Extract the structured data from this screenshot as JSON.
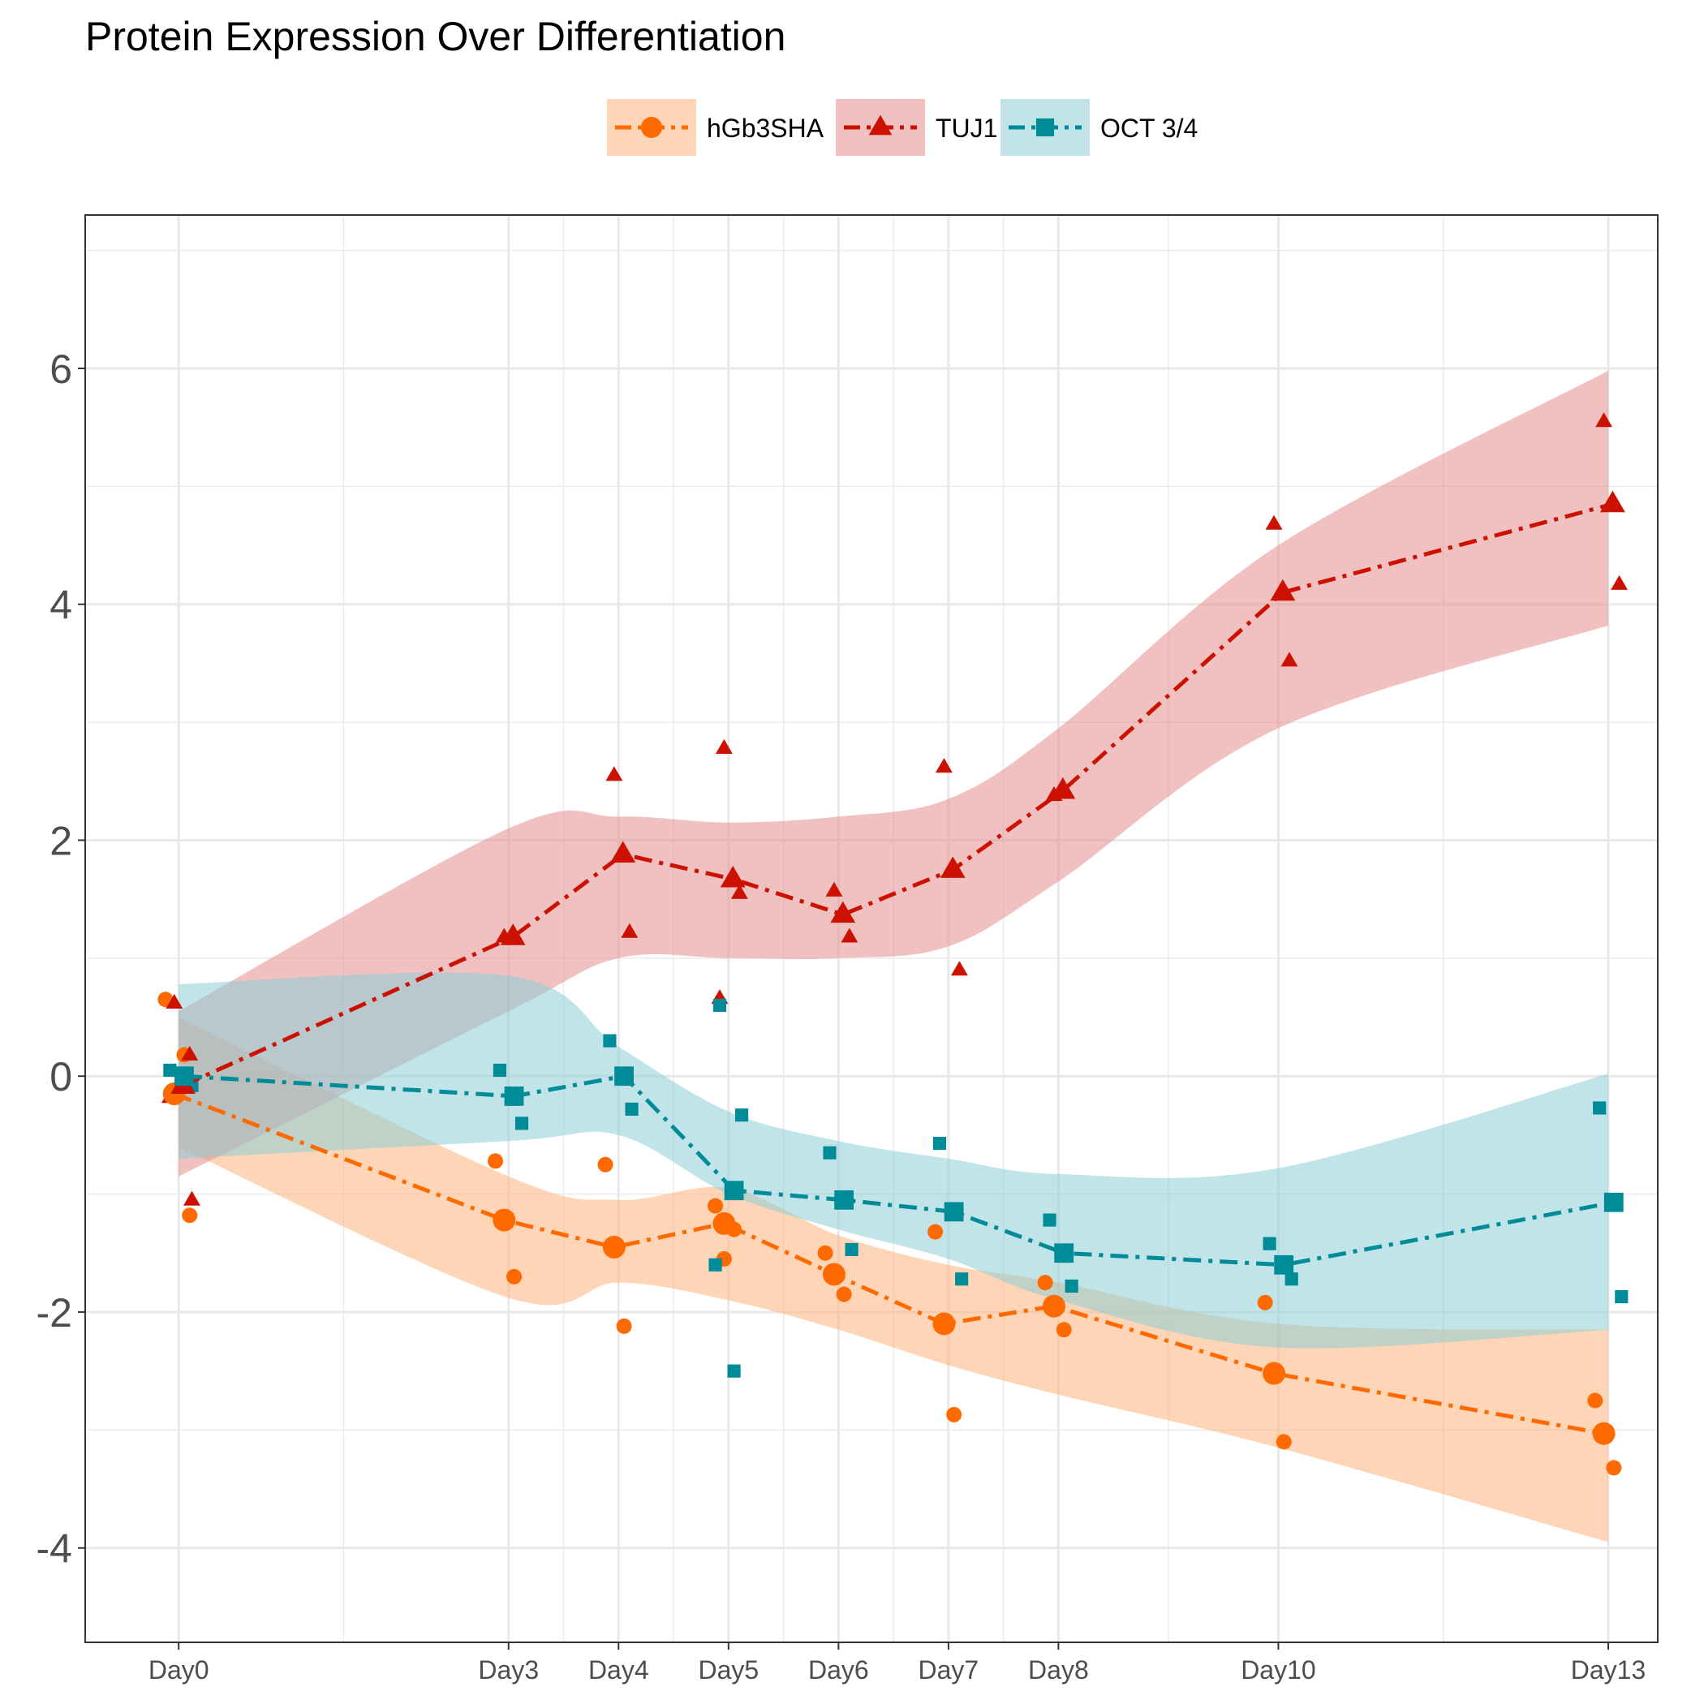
{
  "chart_data": {
    "type": "line",
    "title": "Protein Expression Over Differentiation",
    "xlabel": "",
    "ylabel": "",
    "x": [
      0,
      3,
      4,
      5,
      6,
      7,
      8,
      10,
      13
    ],
    "x_tick_labels": [
      "Day0",
      "Day3",
      "Day4",
      "Day5",
      "Day6",
      "Day7",
      "Day8",
      "Day10",
      "Day13"
    ],
    "xlim": [
      -0.85,
      13.45
    ],
    "ylim": [
      -4.8,
      7.3
    ],
    "y_ticks": [
      -4,
      -2,
      0,
      2,
      4,
      6
    ],
    "grid": true,
    "legend_position": "top",
    "series": [
      {
        "name": "hGb3SHA",
        "color": "#ff6a00",
        "band_color": "#fdb27c",
        "marker": "circle",
        "means": [
          -0.15,
          -1.22,
          -1.45,
          -1.25,
          -1.68,
          -2.1,
          -1.95,
          -2.52,
          -3.03
        ],
        "band_lower": [
          -0.6,
          -1.88,
          -1.75,
          -1.9,
          -2.15,
          -2.45,
          -2.7,
          -3.15,
          -3.95
        ],
        "band_upper": [
          0.5,
          -0.85,
          -1.05,
          -0.95,
          -1.35,
          -1.6,
          -1.75,
          -2.1,
          -2.15
        ],
        "replicates": [
          [
            0.65,
            0.18,
            -0.18,
            -1.18
          ],
          [
            -0.72,
            -1.7
          ],
          [
            -0.75,
            -2.12
          ],
          [
            -1.1,
            -1.3,
            -1.55
          ],
          [
            -1.5,
            -1.85
          ],
          [
            -1.32,
            -2.87
          ],
          [
            -1.75,
            -2.15
          ],
          [
            -1.92,
            -3.1
          ],
          [
            -2.75,
            -3.32
          ]
        ]
      },
      {
        "name": "TUJ1",
        "color": "#cc1100",
        "band_color": "#e38e8c",
        "marker": "triangle",
        "means": [
          -0.08,
          1.18,
          1.88,
          1.67,
          1.37,
          1.75,
          2.42,
          4.1,
          4.85
        ],
        "band_lower": [
          -0.85,
          0.55,
          1.0,
          1.0,
          1.0,
          1.1,
          1.65,
          2.95,
          3.82
        ],
        "band_upper": [
          0.55,
          2.1,
          2.2,
          2.15,
          2.2,
          2.35,
          2.95,
          4.5,
          5.98
        ],
        "replicates": [
          [
            0.62,
            0.18,
            -0.18,
            -1.05
          ],
          [
            1.18
          ],
          [
            2.55,
            1.22
          ],
          [
            2.78,
            1.55,
            0.66
          ],
          [
            1.57,
            1.18
          ],
          [
            2.62,
            0.9
          ],
          [
            2.38
          ],
          [
            4.68,
            3.52
          ],
          [
            5.55,
            4.17
          ]
        ]
      },
      {
        "name": "OCT 3/4",
        "color": "#008b99",
        "band_color": "#8dcdd5",
        "marker": "square",
        "means": [
          0.0,
          -0.17,
          0.0,
          -0.97,
          -1.05,
          -1.15,
          -1.5,
          -1.6,
          -1.07
        ],
        "band_lower": [
          -0.7,
          -0.55,
          -0.5,
          -1.0,
          -1.3,
          -1.55,
          -1.9,
          -2.3,
          -2.15
        ],
        "band_upper": [
          0.78,
          0.85,
          0.25,
          -0.3,
          -0.55,
          -0.7,
          -0.83,
          -0.78,
          0.02
        ],
        "replicates": [
          [
            0.05,
            -0.08
          ],
          [
            0.05,
            -0.4
          ],
          [
            0.3,
            -0.28
          ],
          [
            0.6,
            -0.33,
            -1.6,
            -2.5
          ],
          [
            -0.65,
            -1.47
          ],
          [
            -0.57,
            -1.72
          ],
          [
            -1.22,
            -1.78
          ],
          [
            -1.42,
            -1.72
          ],
          [
            -0.27,
            -1.87
          ]
        ]
      }
    ]
  }
}
